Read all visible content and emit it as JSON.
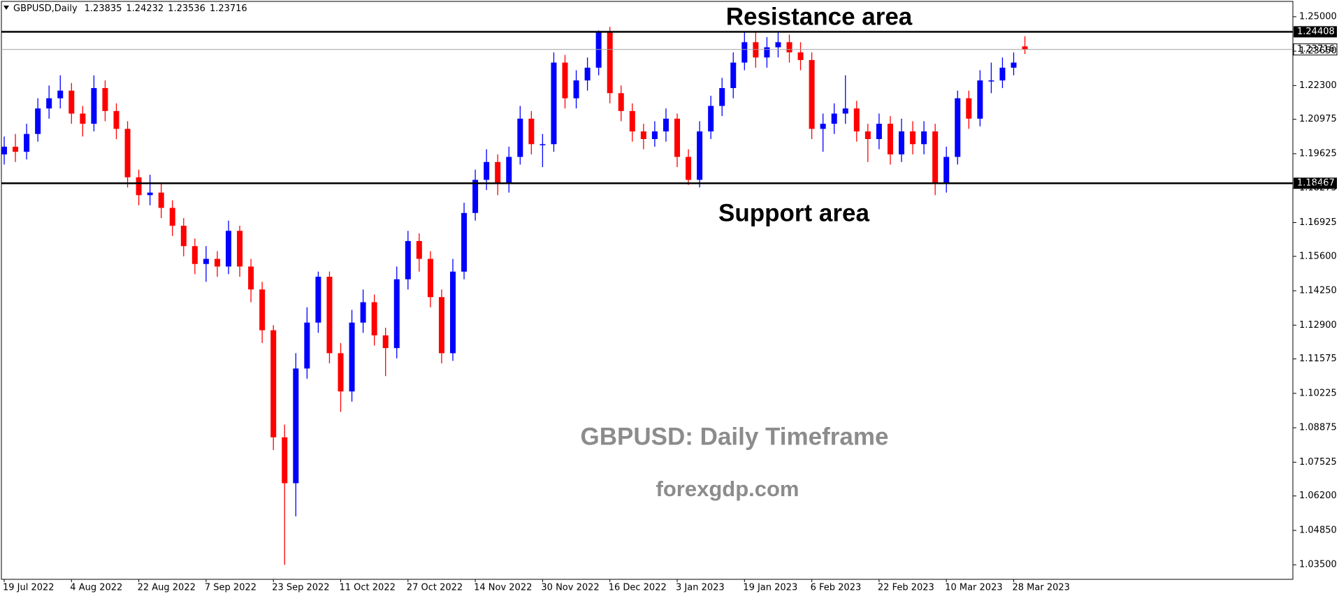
{
  "chart_data": {
    "type": "candlestick",
    "title": "GBPUSD,Daily",
    "categories": [
      "19 Jul 2022",
      null,
      null,
      null,
      null,
      null,
      "4 Aug 2022",
      null,
      null,
      null,
      null,
      null,
      "22 Aug 2022",
      null,
      null,
      null,
      null,
      null,
      "7 Sep 2022",
      null,
      null,
      null,
      null,
      null,
      "23 Sep 2022",
      null,
      null,
      null,
      null,
      null,
      "11 Oct 2022",
      null,
      null,
      null,
      null,
      null,
      "27 Oct 2022",
      null,
      null,
      null,
      null,
      null,
      "14 Nov 2022",
      null,
      null,
      null,
      null,
      null,
      "30 Nov 2022",
      null,
      null,
      null,
      null,
      null,
      "16 Dec 2022",
      null,
      null,
      null,
      null,
      null,
      "3 Jan 2023",
      null,
      null,
      null,
      null,
      null,
      "19 Jan 2023",
      null,
      null,
      null,
      null,
      null,
      "6 Feb 2023",
      null,
      null,
      null,
      null,
      null,
      "22 Feb 2023",
      null,
      null,
      null,
      null,
      null,
      "10 Mar 2023",
      null,
      null,
      null,
      null,
      null,
      "28 Mar 2023",
      null
    ],
    "open": [
      1.196,
      1.199,
      1.197,
      1.204,
      1.214,
      1.218,
      1.221,
      1.212,
      1.208,
      1.222,
      1.213,
      1.206,
      1.187,
      1.18,
      1.181,
      1.175,
      1.168,
      1.16,
      1.153,
      1.155,
      1.152,
      1.166,
      1.152,
      1.143,
      1.127,
      1.085,
      1.067,
      1.112,
      1.13,
      1.148,
      1.118,
      1.103,
      1.13,
      1.138,
      1.125,
      1.12,
      1.147,
      1.162,
      1.155,
      1.14,
      1.118,
      1.15,
      1.173,
      1.186,
      1.193,
      1.185,
      1.195,
      1.21,
      1.2,
      1.2,
      1.232,
      1.218,
      1.225,
      1.23,
      1.244,
      1.22,
      1.213,
      1.205,
      1.202,
      1.205,
      1.21,
      1.195,
      1.186,
      1.205,
      1.215,
      1.222,
      1.232,
      1.24,
      1.234,
      1.238,
      1.24,
      1.236,
      1.233,
      1.206,
      1.208,
      1.212,
      1.214,
      1.205,
      1.202,
      1.208,
      1.196,
      1.205,
      1.2,
      1.205,
      1.185,
      1.195,
      1.218,
      1.21,
      1.225,
      1.225,
      1.23,
      1.23835
    ],
    "high": [
      1.203,
      1.204,
      1.208,
      1.218,
      1.223,
      1.227,
      1.224,
      1.215,
      1.227,
      1.225,
      1.216,
      1.209,
      1.19,
      1.188,
      1.185,
      1.178,
      1.171,
      1.163,
      1.16,
      1.158,
      1.17,
      1.168,
      1.155,
      1.146,
      1.129,
      1.09,
      1.118,
      1.136,
      1.15,
      1.15,
      1.122,
      1.135,
      1.143,
      1.141,
      1.128,
      1.152,
      1.166,
      1.165,
      1.158,
      1.143,
      1.155,
      1.177,
      1.19,
      1.198,
      1.196,
      1.199,
      1.215,
      1.213,
      1.204,
      1.236,
      1.235,
      1.229,
      1.234,
      1.2446,
      1.246,
      1.223,
      1.216,
      1.208,
      1.209,
      1.214,
      1.212,
      1.198,
      1.209,
      1.219,
      1.226,
      1.236,
      1.244,
      1.244,
      1.242,
      1.244,
      1.243,
      1.24,
      1.236,
      1.212,
      1.216,
      1.227,
      1.217,
      1.208,
      1.212,
      1.211,
      1.21,
      1.209,
      1.209,
      1.208,
      1.199,
      1.221,
      1.221,
      1.229,
      1.232,
      1.234,
      1.236,
      1.24232
    ],
    "low": [
      1.192,
      1.193,
      1.194,
      1.201,
      1.21,
      1.214,
      1.208,
      1.203,
      1.205,
      1.209,
      1.202,
      1.183,
      1.176,
      1.176,
      1.171,
      1.164,
      1.156,
      1.149,
      1.146,
      1.148,
      1.149,
      1.148,
      1.138,
      1.122,
      1.08,
      1.035,
      1.054,
      1.108,
      1.126,
      1.114,
      1.095,
      1.099,
      1.126,
      1.121,
      1.109,
      1.116,
      1.143,
      1.15,
      1.136,
      1.114,
      1.115,
      1.147,
      1.17,
      1.182,
      1.18,
      1.181,
      1.192,
      1.196,
      1.191,
      1.197,
      1.214,
      1.214,
      1.221,
      1.227,
      1.216,
      1.209,
      1.201,
      1.198,
      1.199,
      1.201,
      1.191,
      1.184,
      1.183,
      1.202,
      1.211,
      1.218,
      1.229,
      1.23,
      1.23,
      1.234,
      1.232,
      1.229,
      1.202,
      1.197,
      1.204,
      1.208,
      1.201,
      1.193,
      1.198,
      1.192,
      1.193,
      1.196,
      1.196,
      1.18,
      1.181,
      1.192,
      1.206,
      1.207,
      1.22,
      1.222,
      1.227,
      1.23536
    ],
    "close": [
      1.199,
      1.197,
      1.204,
      1.214,
      1.218,
      1.221,
      1.212,
      1.208,
      1.222,
      1.213,
      1.206,
      1.187,
      1.18,
      1.181,
      1.175,
      1.168,
      1.16,
      1.153,
      1.155,
      1.152,
      1.166,
      1.152,
      1.143,
      1.127,
      1.085,
      1.067,
      1.112,
      1.13,
      1.148,
      1.118,
      1.103,
      1.13,
      1.138,
      1.125,
      1.12,
      1.147,
      1.162,
      1.155,
      1.14,
      1.118,
      1.15,
      1.173,
      1.186,
      1.193,
      1.185,
      1.195,
      1.21,
      1.2,
      1.2,
      1.232,
      1.218,
      1.225,
      1.23,
      1.244,
      1.22,
      1.213,
      1.205,
      1.202,
      1.205,
      1.21,
      1.195,
      1.186,
      1.205,
      1.215,
      1.222,
      1.232,
      1.24,
      1.234,
      1.238,
      1.24,
      1.236,
      1.233,
      1.206,
      1.208,
      1.212,
      1.214,
      1.205,
      1.202,
      1.208,
      1.196,
      1.205,
      1.2,
      1.205,
      1.185,
      1.195,
      1.218,
      1.21,
      1.225,
      1.225,
      1.23,
      1.232,
      1.23716
    ],
    "up_color": "#0000ff",
    "down_color": "#ff0000",
    "ylim": [
      1.0293,
      1.256
    ],
    "yticks": [
      {
        "value": 1.25,
        "label": "1.25000"
      },
      {
        "value": 1.2365,
        "label": "1.23650"
      },
      {
        "value": 1.223,
        "label": "1.22300"
      },
      1.20975,
      1.19625,
      1.18275,
      1.16925,
      {
        "value": 1.156,
        "label": "1.15600"
      },
      {
        "value": 1.1425,
        "label": "1.14250"
      },
      {
        "value": 1.129,
        "label": "1.12900"
      },
      1.11575,
      1.10225,
      1.08875,
      1.07525,
      {
        "value": 1.062,
        "label": "1.06200"
      },
      {
        "value": 1.0485,
        "label": "1.04850"
      },
      {
        "value": 1.035,
        "label": "1.03500"
      }
    ],
    "levels": [
      {
        "name": "Resistance area",
        "value": 1.24408
      },
      {
        "name": "Support area",
        "value": 1.18467
      }
    ],
    "annotations": [
      "GBPUSD: Daily Timeframe",
      "forexgdp.com"
    ],
    "grid": false
  }
}
